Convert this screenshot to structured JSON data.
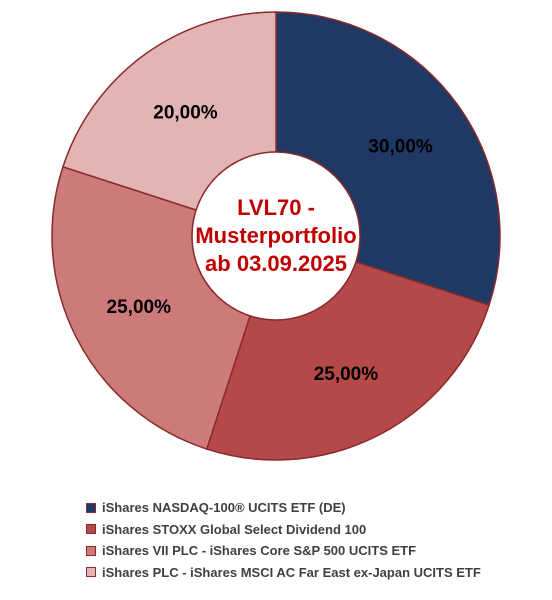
{
  "chart_data": {
    "type": "pie",
    "variant": "donut",
    "center_title_lines": [
      "LVL70 -",
      "Musterportfolio",
      "ab 03.09.2025"
    ],
    "slices": [
      {
        "name": "iShares NASDAQ-100® UCITS ETF (DE)",
        "value": 30,
        "label": "30,00%",
        "color": "#1f3864"
      },
      {
        "name": "iShares STOXX Global Select Dividend 100",
        "value": 25,
        "label": "25,00%",
        "color": "#b5494a"
      },
      {
        "name": "iShares VII PLC - iShares Core S&P 500 UCITS ETF",
        "value": 25,
        "label": "25,00%",
        "color": "#cc7a7a"
      },
      {
        "name": "iShares PLC - iShares MSCI AC Far East ex-Japan UCITS ETF",
        "value": 20,
        "label": "20,00%",
        "color": "#e2b4b4"
      }
    ],
    "legend_position": "bottom",
    "start_angle_deg": 0,
    "direction": "clockwise",
    "colors": {
      "slice_border": "#8b2a2a",
      "center_title": "#c00000",
      "label_text": "#000000",
      "legend_text": "#404040"
    }
  }
}
